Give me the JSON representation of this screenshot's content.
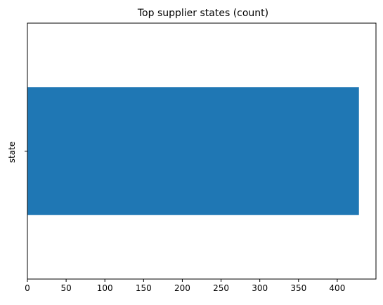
{
  "chart_data": {
    "type": "bar",
    "orientation": "horizontal",
    "title": "Top supplier states (count)",
    "xlabel": "",
    "ylabel": "state",
    "categories": [
      ""
    ],
    "values": [
      428
    ],
    "xlim": [
      0,
      450
    ],
    "xticks": [
      0,
      50,
      100,
      150,
      200,
      250,
      300,
      350,
      400
    ],
    "grid": false,
    "legend": "none",
    "bar_color": "#1f77b4"
  }
}
